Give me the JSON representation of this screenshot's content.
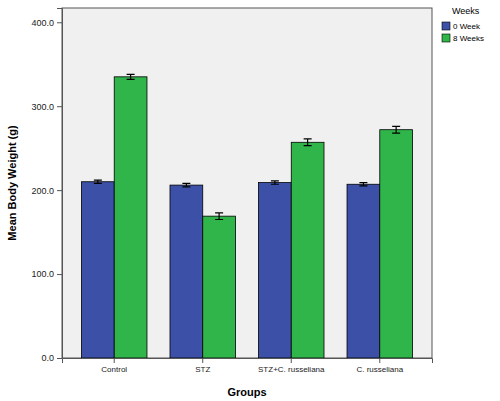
{
  "chart_data": {
    "type": "bar",
    "x_label": "Groups",
    "y_label": "Mean Body Weight (g)",
    "legend_title": "Weeks",
    "legend": "right",
    "categories": [
      "Control",
      "STZ",
      "STZ+C. russeliana",
      "C. russeliana"
    ],
    "series": [
      {
        "name": "0 Week",
        "color": "#3b50a6",
        "values": [
          210,
          206,
          209,
          207
        ],
        "errors": [
          2,
          2,
          2,
          2
        ]
      },
      {
        "name": "8 Weeks",
        "color": "#2fb54a",
        "values": [
          335,
          169,
          257,
          272
        ],
        "errors": [
          3,
          4,
          4,
          4
        ]
      }
    ],
    "ylim": [
      0,
      417
    ],
    "yticks": [
      {
        "value": 0,
        "label": "0.0"
      },
      {
        "value": 100,
        "label": "100.0"
      },
      {
        "value": 200,
        "label": "200.0"
      },
      {
        "value": 300,
        "label": "300.0"
      },
      {
        "value": 400,
        "label": "400.0"
      }
    ],
    "grid": false
  }
}
